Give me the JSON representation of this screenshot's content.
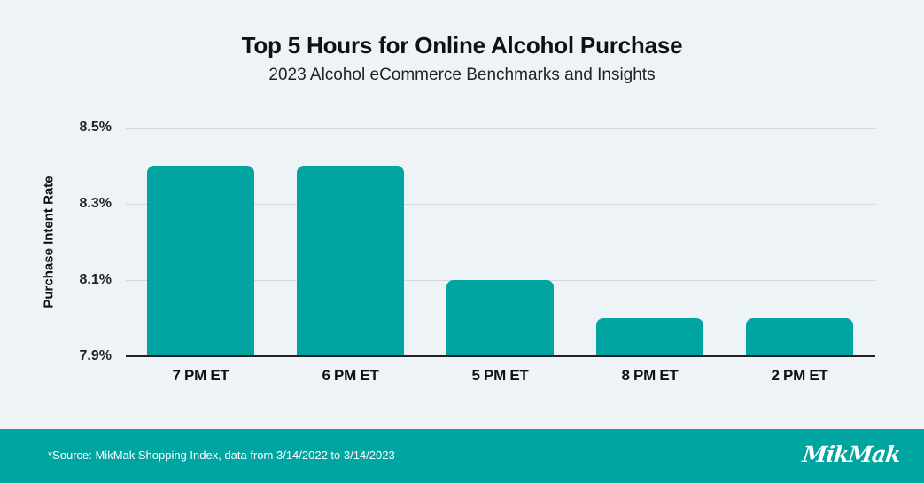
{
  "header": {
    "title": "Top 5 Hours for Online Alcohol Purchase",
    "subtitle": "2023 Alcohol eCommerce Benchmarks and Insights"
  },
  "axes": {
    "ylabel": "Purchase Intent Rate",
    "yticks": [
      "8.5%",
      "8.3%",
      "8.1%",
      "7.9%"
    ]
  },
  "bars": [
    {
      "label": "7 PM ET",
      "value": 8.4
    },
    {
      "label": "6 PM ET",
      "value": 8.4
    },
    {
      "label": "5 PM ET",
      "value": 8.1
    },
    {
      "label": "8 PM ET",
      "value": 8.0
    },
    {
      "label": "2 PM ET",
      "value": 8.0
    }
  ],
  "footer": {
    "source": "*Source: MikMak Shopping Index, data from 3/14/2022 to 3/14/2023",
    "logo": "MikMak"
  },
  "colors": {
    "bar": "#00a5a1",
    "footer": "#00a5a1",
    "background": "#eef3f7"
  },
  "chart_data": {
    "type": "bar",
    "title": "Top 5 Hours for Online Alcohol Purchase",
    "subtitle": "2023 Alcohol eCommerce Benchmarks and Insights",
    "categories": [
      "7 PM ET",
      "6 PM ET",
      "5 PM ET",
      "8 PM ET",
      "2 PM ET"
    ],
    "values": [
      8.4,
      8.4,
      8.1,
      8.0,
      8.0
    ],
    "xlabel": "",
    "ylabel": "Purchase Intent Rate",
    "ylim": [
      7.9,
      8.5
    ],
    "yticks": [
      7.9,
      8.1,
      8.3,
      8.5
    ],
    "y_unit": "%",
    "grid": true,
    "legend": null,
    "annotations": [
      "*Source: MikMak Shopping Index, data from 3/14/2022 to 3/14/2023"
    ]
  }
}
